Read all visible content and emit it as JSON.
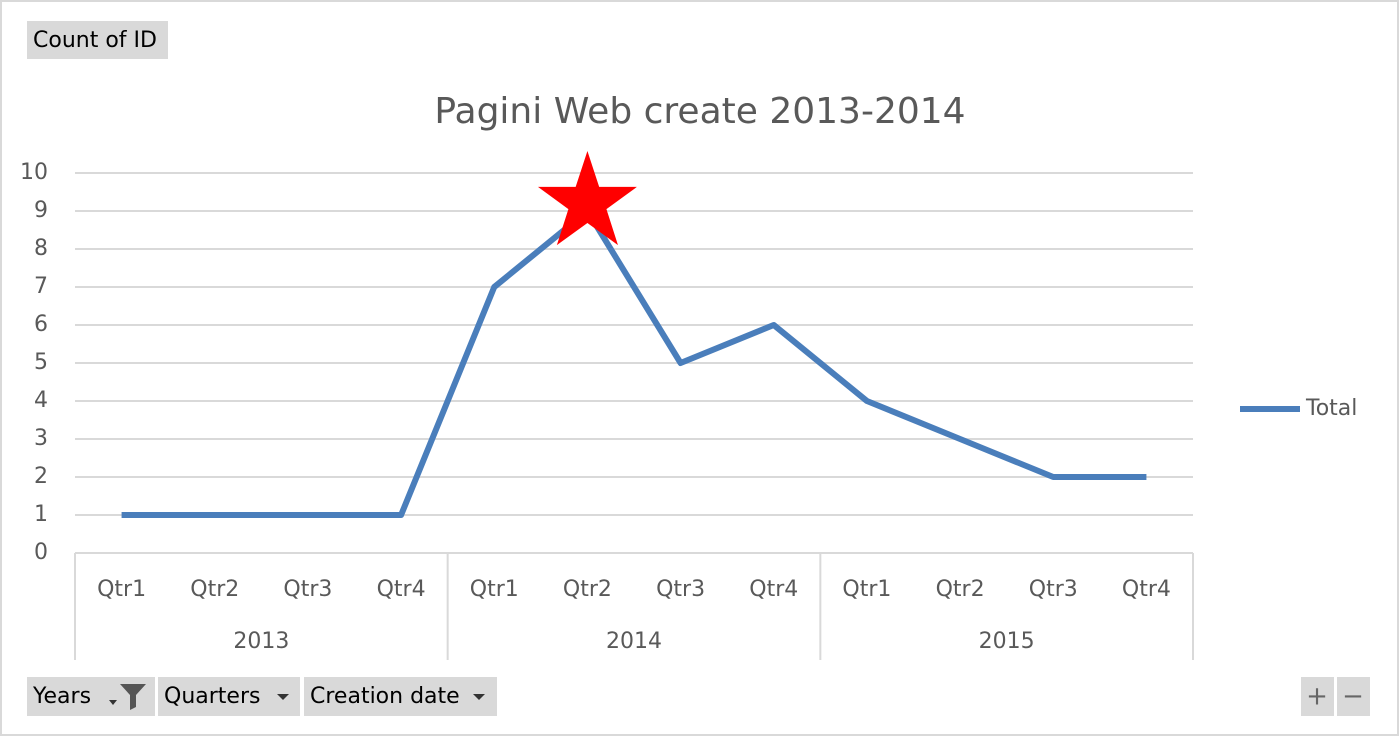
{
  "chart_data": {
    "type": "line",
    "title": "Pagini Web create 2013-2014",
    "categories": [
      "Qtr1",
      "Qtr2",
      "Qtr3",
      "Qtr4",
      "Qtr1",
      "Qtr2",
      "Qtr3",
      "Qtr4",
      "Qtr1",
      "Qtr2",
      "Qtr3",
      "Qtr4"
    ],
    "category_groups": [
      "2013",
      "2014",
      "2015"
    ],
    "series": [
      {
        "name": "Total",
        "color": "#4a7ebb",
        "values": [
          1,
          1,
          1,
          1,
          7,
          9,
          5,
          6,
          4,
          3,
          2,
          2
        ]
      }
    ],
    "ylim": [
      0,
      10
    ],
    "yticks": [
      0,
      1,
      2,
      3,
      4,
      5,
      6,
      7,
      8,
      9,
      10
    ],
    "grid": true,
    "legend": "right"
  },
  "field_buttons": {
    "value": "Count of ID",
    "axis": [
      "Years",
      "Quarters",
      "Creation date"
    ],
    "zoom": [
      "+",
      "−"
    ]
  }
}
